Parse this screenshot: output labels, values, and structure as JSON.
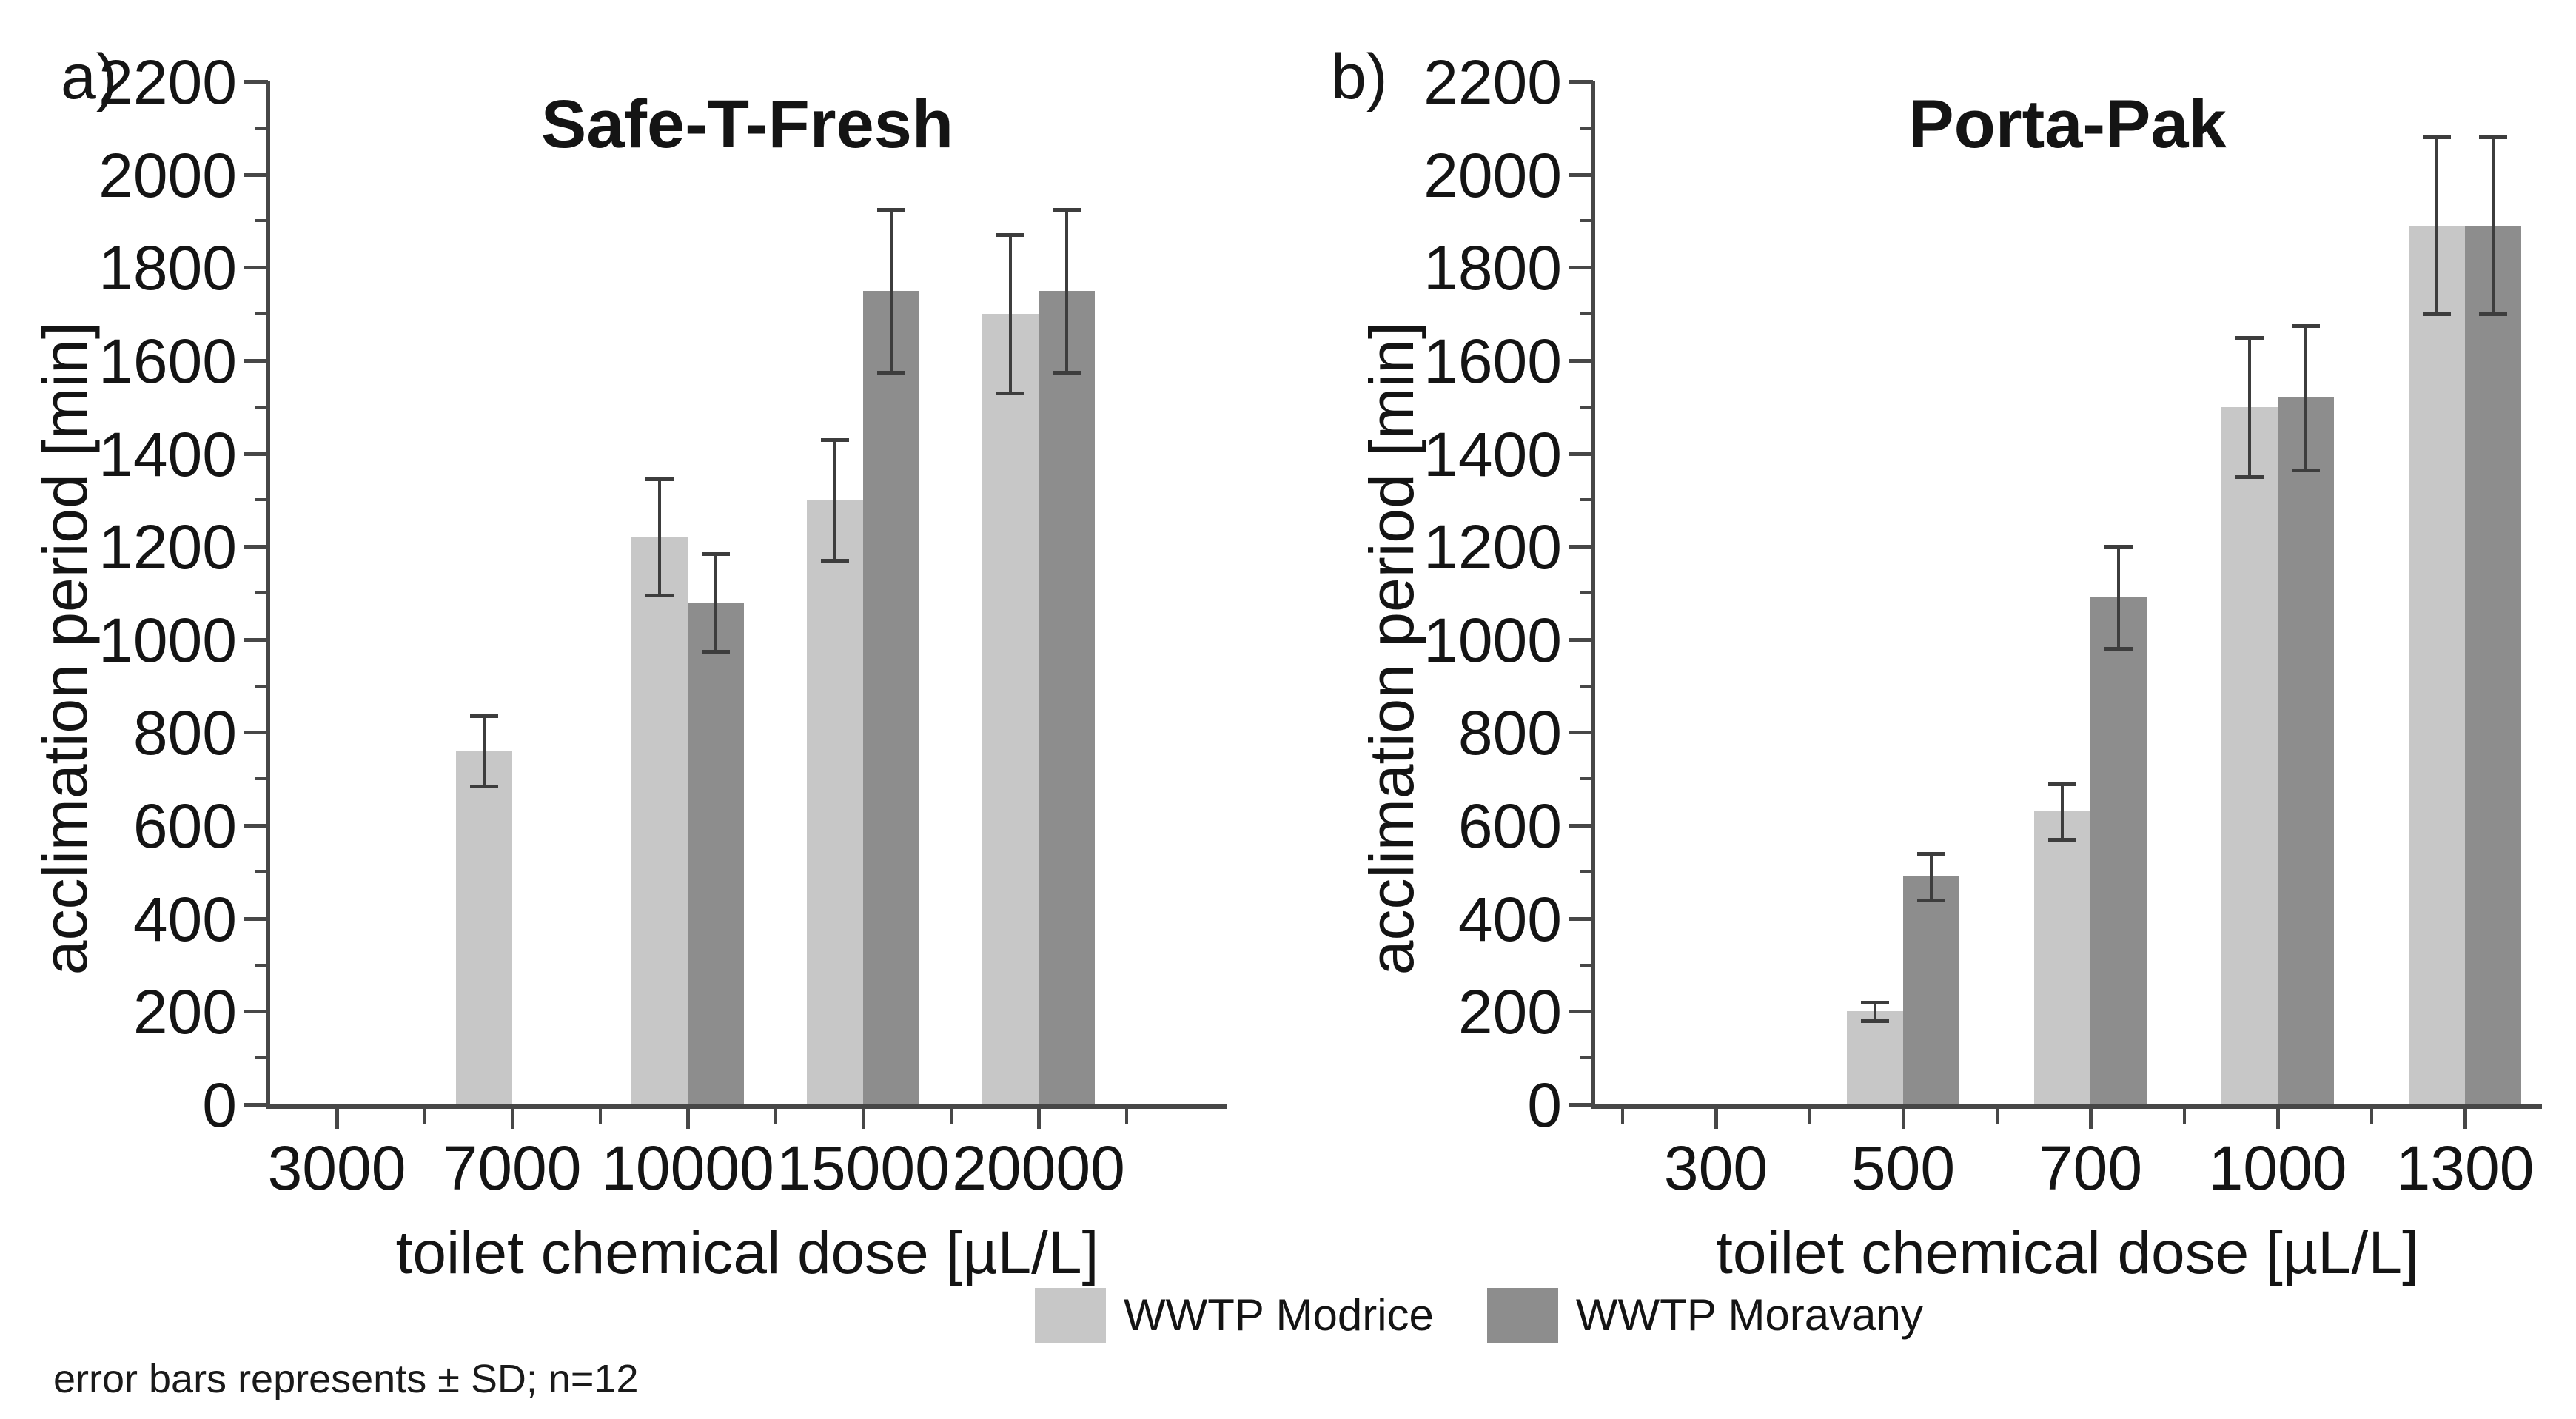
{
  "page": {
    "background": "#ffffff"
  },
  "footer": {
    "note": "error bars represents ± SD; n=12"
  },
  "legend": {
    "position": "bottom-center",
    "items": [
      {
        "label": "WWTP Modrice",
        "color": "#c7c7c7"
      },
      {
        "label": "WWTP Moravany",
        "color": "#8d8d8d"
      }
    ]
  },
  "chart_data": [
    {
      "type": "bar",
      "panel_label": "a)",
      "title": "Safe-T-Fresh",
      "xlabel": "toilet chemical dose [µL/L]",
      "ylabel": "acclimation period [min]",
      "ylim": [
        0,
        2200
      ],
      "yticks": [
        0,
        200,
        400,
        600,
        800,
        1000,
        1200,
        1400,
        1600,
        1800,
        2000,
        2200
      ],
      "ytick_minor_step": 100,
      "grid": false,
      "categories": [
        "3000",
        "7000",
        "10000",
        "15000",
        "20000"
      ],
      "series": [
        {
          "name": "WWTP Modrice",
          "color": "#c7c7c7",
          "values": [
            null,
            760,
            1220,
            1300,
            1700
          ],
          "sd": [
            null,
            75,
            125,
            130,
            170
          ]
        },
        {
          "name": "WWTP Moravany",
          "color": "#8d8d8d",
          "values": [
            null,
            null,
            1080,
            1750,
            1750
          ],
          "sd": [
            null,
            null,
            105,
            175,
            175
          ]
        }
      ]
    },
    {
      "type": "bar",
      "panel_label": "b)",
      "title": "Porta-Pak",
      "xlabel": "toilet chemical dose [µL/L]",
      "ylabel": "acclimation period [min]",
      "ylim": [
        0,
        2200
      ],
      "yticks": [
        0,
        200,
        400,
        600,
        800,
        1000,
        1200,
        1400,
        1600,
        1800,
        2000,
        2200
      ],
      "ytick_minor_step": 100,
      "grid": false,
      "categories": [
        "300",
        "500",
        "700",
        "1000",
        "1300"
      ],
      "series": [
        {
          "name": "WWTP Modrice",
          "color": "#c7c7c7",
          "values": [
            null,
            200,
            630,
            1500,
            1890
          ],
          "sd": [
            null,
            20,
            60,
            150,
            190
          ]
        },
        {
          "name": "WWTP Moravany",
          "color": "#8d8d8d",
          "values": [
            null,
            490,
            1090,
            1520,
            1890
          ],
          "sd": [
            null,
            50,
            110,
            155,
            190
          ]
        }
      ]
    }
  ]
}
